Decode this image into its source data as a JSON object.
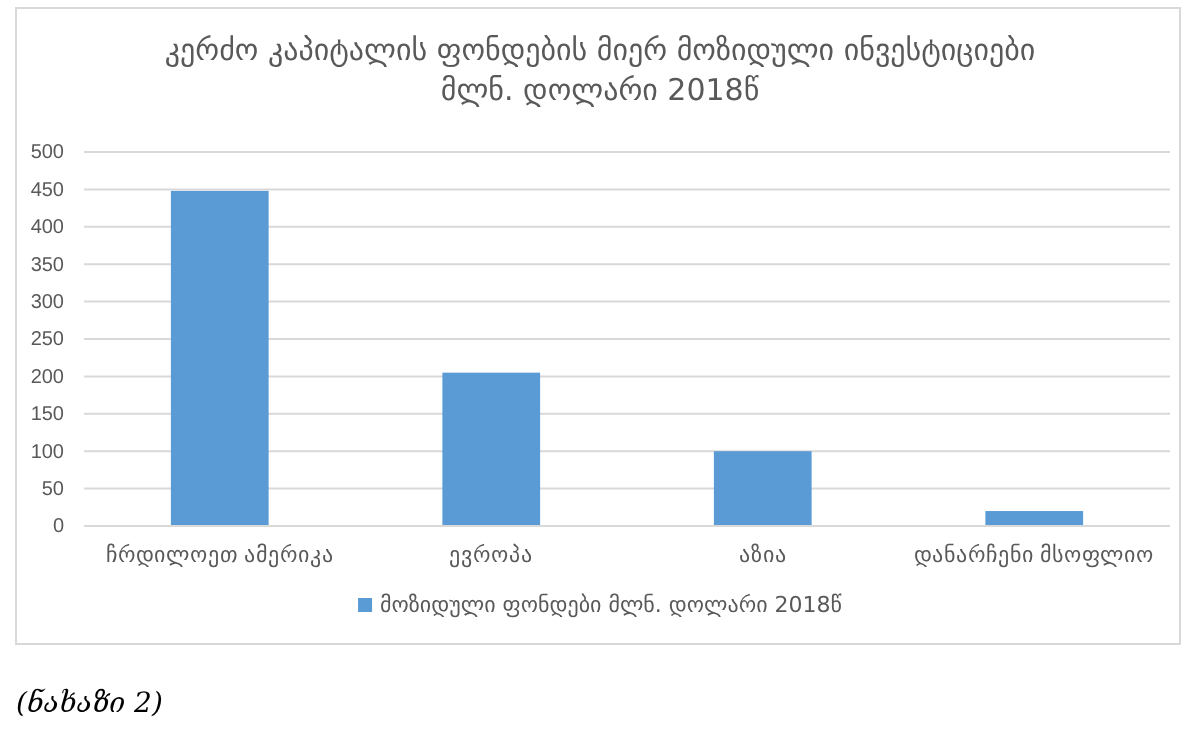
{
  "chart_data": {
    "type": "bar",
    "title": "კერძო კაპიტალის ფონდების მიერ მოზიდული ინვესტიციები მლნ. დოლარი 2018წ",
    "categories": [
      "ჩრდილოეთ ამერიკა",
      "ევროპა",
      "აზია",
      "დანარჩენი მსოფლიო"
    ],
    "series": [
      {
        "name": "მოზიდული ფონდები მლნ. დოლარი 2018წ",
        "color": "#5b9bd5",
        "values": [
          448,
          205,
          100,
          20
        ]
      }
    ],
    "ylim": [
      0,
      500
    ],
    "yticks": [
      0,
      50,
      100,
      150,
      200,
      250,
      300,
      350,
      400,
      450,
      500
    ],
    "grid": "y",
    "legend": "bottom",
    "annotations": [
      "(ნახაზი 2)"
    ]
  }
}
